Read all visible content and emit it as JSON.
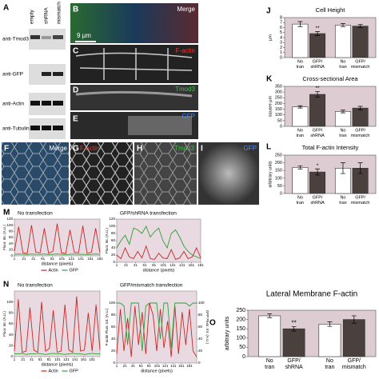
{
  "panel_labels": [
    "A",
    "B",
    "C",
    "D",
    "E",
    "F",
    "G",
    "H",
    "I",
    "J",
    "K",
    "L",
    "M",
    "N",
    "O"
  ],
  "blot": {
    "lanes": [
      "empty",
      "shRNA",
      "mismatch"
    ],
    "rows": [
      "anti-Tmod3",
      "anti-GFP",
      "anti-Actin",
      "anti-Tubulin"
    ]
  },
  "image_labels": {
    "B": "Merge",
    "scale_bar": "9 µm",
    "C": "F-actin",
    "D": "Tmod3",
    "E": "GFP",
    "F": "Merge",
    "G": "F-actin",
    "H": "Tmod3",
    "I": "GFP"
  },
  "chart_data": [
    {
      "type": "bar",
      "title": "Cell Height",
      "ylabel": "µm",
      "categories": [
        [
          "No",
          "tran"
        ],
        [
          "GFP/",
          "shRNA"
        ],
        [
          "No",
          "tran"
        ],
        [
          "GFP/",
          "mismatch"
        ]
      ],
      "values": [
        6.7,
        4.8,
        6.5,
        6.3
      ],
      "errors": [
        0.5,
        0.4,
        0.3,
        0.3
      ],
      "colors": [
        "#ffffff",
        "#4a403d",
        "#ffffff",
        "#4a403d"
      ],
      "significance": [
        null,
        "**",
        null,
        null
      ],
      "ylim": [
        0,
        8
      ],
      "yticks": [
        0,
        1,
        2,
        3,
        4,
        5,
        6,
        7,
        8
      ]
    },
    {
      "type": "bar",
      "title": "Cross-sectional Area",
      "ylabel": "square µm",
      "categories": [
        [
          "No",
          "tran"
        ],
        [
          "GFP/",
          "shRNA"
        ],
        [
          "No",
          "tran"
        ],
        [
          "GFP/",
          "mismatch"
        ]
      ],
      "values": [
        170,
        280,
        130,
        160
      ],
      "errors": [
        10,
        25,
        12,
        15
      ],
      "colors": [
        "#ffffff",
        "#4a403d",
        "#ffffff",
        "#4a403d"
      ],
      "significance": [
        null,
        "**",
        null,
        null
      ],
      "ylim": [
        0,
        350
      ],
      "yticks": [
        0,
        50,
        100,
        150,
        200,
        250,
        300,
        350
      ]
    },
    {
      "type": "bar",
      "title": "Total F-actin Intensity",
      "ylabel": "arbitrary units",
      "categories": [
        [
          "No",
          "tran"
        ],
        [
          "GFP/",
          "shRNA"
        ],
        [
          "No",
          "tran"
        ],
        [
          "GFP/",
          "mismatch"
        ]
      ],
      "values": [
        170,
        140,
        165,
        165
      ],
      "errors": [
        10,
        20,
        35,
        35
      ],
      "colors": [
        "#ffffff",
        "#4a403d",
        "#ffffff",
        "#4a403d"
      ],
      "significance": [
        null,
        "*",
        null,
        null
      ],
      "ylim": [
        0,
        250
      ],
      "yticks": [
        0,
        50,
        100,
        150,
        200,
        250
      ]
    },
    {
      "type": "bar",
      "title": "Lateral Membrane F-actin",
      "ylabel": "arbitrary units",
      "categories": [
        [
          "No",
          "tran"
        ],
        [
          "GFP/",
          "shRNA"
        ],
        [
          "No",
          "tran"
        ],
        [
          "GFP/",
          "mismatch"
        ]
      ],
      "values": [
        220,
        150,
        175,
        200
      ],
      "errors": [
        10,
        12,
        12,
        20
      ],
      "colors": [
        "#ffffff",
        "#4a403d",
        "#ffffff",
        "#4a403d"
      ],
      "significance": [
        null,
        "**",
        null,
        null
      ],
      "ylim": [
        0,
        250
      ],
      "yticks": [
        0,
        50,
        100,
        150,
        200,
        250
      ]
    },
    {
      "type": "line",
      "title": "No transfection",
      "xlabel": "distance (pixels)",
      "ylabel": "Fluor. Int. (A.U.)",
      "legend": "bottom",
      "x": [
        1,
        10,
        19,
        28,
        37,
        46,
        55,
        64,
        73,
        82,
        91,
        100,
        109,
        118,
        127,
        136,
        145,
        154,
        163,
        172,
        181
      ],
      "xlim": [
        1,
        181
      ],
      "xticks": [
        1,
        21,
        41,
        61,
        81,
        101,
        121,
        141,
        161,
        181
      ],
      "ylim": [
        0,
        120
      ],
      "yticks": [
        0,
        20,
        40,
        60,
        80,
        100,
        120
      ],
      "series": [
        {
          "name": "Actin",
          "color": "#c62828",
          "values": [
            15,
            95,
            10,
            8,
            100,
            12,
            10,
            90,
            8,
            15,
            105,
            10,
            8,
            85,
            12,
            10,
            98,
            8,
            12,
            90,
            10
          ]
        },
        {
          "name": "GFP",
          "color": "#2e9e3a",
          "values": [
            5,
            6,
            5,
            4,
            6,
            5,
            5,
            6,
            4,
            5,
            6,
            5,
            4,
            5,
            6,
            5,
            5,
            4,
            5,
            6,
            5
          ]
        }
      ]
    },
    {
      "type": "line",
      "title": "GFP/shRNA transfection",
      "xlabel": "distance (pixels)",
      "ylabel": "Fluor. Int. (A.U.)",
      "x": [
        1,
        10,
        19,
        28,
        37,
        46,
        55,
        64,
        73,
        82,
        91,
        100,
        109,
        118,
        127,
        136,
        145,
        154,
        163,
        172,
        181
      ],
      "xlim": [
        1,
        181
      ],
      "xticks": [
        1,
        21,
        41,
        61,
        81,
        101,
        121,
        141,
        161,
        181
      ],
      "ylim": [
        0,
        120
      ],
      "yticks": [
        0,
        20,
        40,
        60,
        80,
        100,
        120
      ],
      "series": [
        {
          "color": "#c62828",
          "values": [
            20,
            10,
            40,
            15,
            10,
            30,
            12,
            45,
            10,
            8,
            25,
            12,
            10,
            35,
            8,
            12,
            30,
            10,
            15,
            40,
            12
          ]
        },
        {
          "color": "#2e9e3a",
          "values": [
            40,
            60,
            75,
            50,
            95,
            90,
            80,
            100,
            70,
            85,
            95,
            60,
            40,
            80,
            90,
            70,
            45,
            30,
            20,
            15,
            10
          ]
        }
      ]
    },
    {
      "type": "line",
      "title": "No transfection",
      "xlabel": "distance (pixels)",
      "ylabel": "Fluor. Int. (A.U.)",
      "legend": "bottom",
      "x": [
        1,
        10,
        19,
        28,
        37,
        46,
        55,
        64,
        73,
        82,
        91,
        100,
        109,
        118,
        127,
        136,
        145,
        154,
        163,
        172,
        181,
        190,
        199
      ],
      "xlim": [
        1,
        199
      ],
      "xticks": [
        1,
        21,
        41,
        61,
        81,
        101,
        121,
        141,
        161,
        181
      ],
      "ylim": [
        0,
        120
      ],
      "yticks": [
        0,
        20,
        40,
        60,
        80,
        100
      ],
      "series": [
        {
          "name": "Actin",
          "color": "#c62828",
          "values": [
            10,
            105,
            8,
            10,
            90,
            12,
            8,
            100,
            10,
            15,
            85,
            8,
            10,
            95,
            12,
            8,
            110,
            10,
            12,
            80,
            10,
            95,
            12
          ]
        },
        {
          "name": "GFP",
          "color": "#2e9e3a",
          "values": [
            5,
            5,
            6,
            4,
            5,
            5,
            6,
            5,
            4,
            5,
            6,
            5,
            5,
            4,
            5,
            6,
            5,
            5,
            4,
            5,
            6,
            5,
            5
          ]
        }
      ]
    },
    {
      "type": "line",
      "title": "GFP/mismatch transfection",
      "xlabel": "distance (pixels)",
      "ylabel": "F-actin Fluor. Int. (A.U.)",
      "y2label": "GFP Fluor. Int. (A.U.)",
      "x": [
        1,
        10,
        19,
        28,
        37,
        46,
        55,
        64,
        73,
        82,
        91,
        100,
        109,
        118,
        127,
        136,
        145,
        154,
        163,
        172,
        181,
        190,
        199
      ],
      "xlim": [
        1,
        199
      ],
      "xticks": [
        1,
        21,
        41,
        61,
        81,
        101,
        121,
        141,
        161,
        181
      ],
      "ylim": [
        0,
        120
      ],
      "yticks": [
        0,
        20,
        40,
        60,
        80,
        100
      ],
      "y2lim": [
        0,
        120
      ],
      "y2ticks": [
        0,
        20,
        40,
        60,
        80,
        100
      ],
      "series": [
        {
          "color": "#c62828",
          "values": [
            15,
            90,
            20,
            75,
            10,
            95,
            30,
            85,
            15,
            100,
            80,
            20,
            90,
            25,
            70,
            10,
            95,
            15,
            85,
            30,
            90,
            20,
            10
          ]
        },
        {
          "color": "#2e9e3a",
          "axis": "y2",
          "values": [
            100,
            100,
            95,
            30,
            100,
            100,
            100,
            20,
            95,
            100,
            100,
            100,
            40,
            100,
            100,
            25,
            100,
            100,
            100,
            100,
            95,
            100,
            100
          ]
        }
      ]
    }
  ]
}
